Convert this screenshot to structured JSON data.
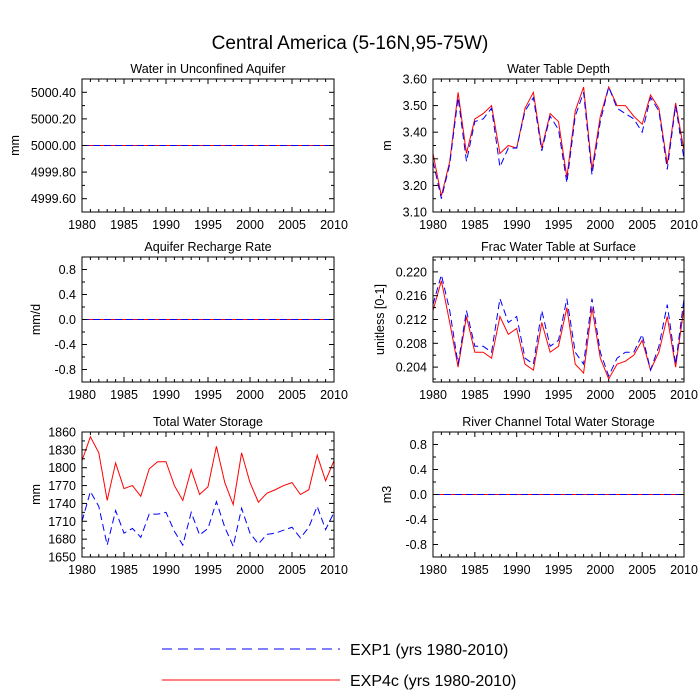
{
  "title": "Central America (5-16N,95-75W)",
  "legend": [
    {
      "label": "EXP1 (yrs 1980-2010)",
      "color": "#0000ff",
      "dash": true
    },
    {
      "label": "EXP4c (yrs 1980-2010)",
      "color": "#ff0000",
      "dash": false
    }
  ],
  "chart_data": [
    {
      "type": "line",
      "title": "Water in Unconfined Aquifer",
      "ylabel": "mm",
      "xlabel": "",
      "xlim": [
        1980,
        2010
      ],
      "ylim": [
        4999.5,
        5000.5
      ],
      "xticks": [
        1980,
        1985,
        1990,
        1995,
        2000,
        2005,
        2010
      ],
      "yticks": [
        4999.6,
        4999.8,
        5000.0,
        5000.2,
        5000.4
      ],
      "ytick_labels": [
        "4999.60",
        "4999.80",
        "5000.00",
        "5000.20",
        "5000.40"
      ],
      "years": [
        1980,
        2010
      ],
      "series": [
        {
          "name": "EXP1",
          "values": [
            5000.0,
            5000.0
          ]
        },
        {
          "name": "EXP4c",
          "values": [
            5000.0,
            5000.0
          ]
        }
      ]
    },
    {
      "type": "line",
      "title": "Water Table Depth",
      "ylabel": "m",
      "xlabel": "",
      "xlim": [
        1980,
        2010
      ],
      "ylim": [
        3.1,
        3.6
      ],
      "xticks": [
        1980,
        1985,
        1990,
        1995,
        2000,
        2005,
        2010
      ],
      "yticks": [
        3.1,
        3.2,
        3.3,
        3.4,
        3.5,
        3.6
      ],
      "ytick_labels": [
        "3.10",
        "3.20",
        "3.30",
        "3.40",
        "3.50",
        "3.60"
      ],
      "years": [
        1980,
        1981,
        1982,
        1983,
        1984,
        1985,
        1986,
        1987,
        1988,
        1989,
        1990,
        1991,
        1992,
        1993,
        1994,
        1995,
        1996,
        1997,
        1998,
        1999,
        2000,
        2001,
        2002,
        2003,
        2004,
        2005,
        2006,
        2007,
        2008,
        2009,
        2010
      ],
      "series": [
        {
          "name": "EXP1",
          "values": [
            3.29,
            3.15,
            3.28,
            3.53,
            3.29,
            3.44,
            3.45,
            3.49,
            3.27,
            3.34,
            3.34,
            3.48,
            3.53,
            3.33,
            3.46,
            3.41,
            3.21,
            3.46,
            3.55,
            3.24,
            3.44,
            3.57,
            3.49,
            3.47,
            3.45,
            3.4,
            3.53,
            3.48,
            3.26,
            3.5,
            3.3
          ]
        },
        {
          "name": "EXP4c",
          "values": [
            3.32,
            3.16,
            3.29,
            3.55,
            3.32,
            3.45,
            3.47,
            3.5,
            3.32,
            3.35,
            3.34,
            3.49,
            3.55,
            3.34,
            3.47,
            3.44,
            3.23,
            3.48,
            3.57,
            3.26,
            3.46,
            3.57,
            3.5,
            3.5,
            3.46,
            3.43,
            3.54,
            3.49,
            3.28,
            3.51,
            3.33
          ]
        }
      ]
    },
    {
      "type": "line",
      "title": "Aquifer Recharge Rate",
      "ylabel": "mm/d",
      "xlabel": "",
      "xlim": [
        1980,
        2010
      ],
      "ylim": [
        -1.0,
        1.0
      ],
      "xticks": [
        1980,
        1985,
        1990,
        1995,
        2000,
        2005,
        2010
      ],
      "yticks": [
        -0.8,
        -0.4,
        0.0,
        0.4,
        0.8
      ],
      "ytick_labels": [
        "-0.8",
        "-0.4",
        "0.0",
        "0.4",
        "0.8"
      ],
      "years": [
        1980,
        2010
      ],
      "series": [
        {
          "name": "EXP1",
          "values": [
            0.0,
            0.0
          ]
        },
        {
          "name": "EXP4c",
          "values": [
            0.0,
            0.0
          ]
        }
      ]
    },
    {
      "type": "line",
      "title": "Frac Water Table at Surface",
      "ylabel": "unitless [0-1]",
      "xlabel": "",
      "xlim": [
        1980,
        2010
      ],
      "ylim": [
        0.2015,
        0.2225
      ],
      "xticks": [
        1980,
        1985,
        1990,
        1995,
        2000,
        2005,
        2010
      ],
      "yticks": [
        0.204,
        0.208,
        0.212,
        0.216,
        0.22
      ],
      "ytick_labels": [
        "0.204",
        "0.208",
        "0.212",
        "0.216",
        "0.220"
      ],
      "years": [
        1980,
        1981,
        1982,
        1983,
        1984,
        1985,
        1986,
        1987,
        1988,
        1989,
        1990,
        1991,
        1992,
        1993,
        1994,
        1995,
        1996,
        1997,
        1998,
        1999,
        2000,
        2001,
        2002,
        2003,
        2004,
        2005,
        2006,
        2007,
        2008,
        2009,
        2010
      ],
      "series": [
        {
          "name": "EXP1",
          "values": [
            0.2145,
            0.2195,
            0.2135,
            0.2045,
            0.2135,
            0.2075,
            0.2075,
            0.2065,
            0.2155,
            0.2115,
            0.2125,
            0.2055,
            0.2045,
            0.2135,
            0.2075,
            0.2085,
            0.2155,
            0.2065,
            0.2045,
            0.2155,
            0.2065,
            0.2025,
            0.2055,
            0.2065,
            0.2065,
            0.2095,
            0.2035,
            0.2075,
            0.2145,
            0.2045,
            0.2155
          ]
        },
        {
          "name": "EXP4c",
          "values": [
            0.2135,
            0.2185,
            0.2115,
            0.204,
            0.2125,
            0.2065,
            0.2065,
            0.2055,
            0.2125,
            0.2095,
            0.2105,
            0.2045,
            0.2035,
            0.2115,
            0.2065,
            0.2075,
            0.214,
            0.2045,
            0.203,
            0.214,
            0.2055,
            0.202,
            0.2045,
            0.205,
            0.206,
            0.2085,
            0.2035,
            0.2065,
            0.2125,
            0.204,
            0.214
          ]
        }
      ]
    },
    {
      "type": "line",
      "title": "Total Water Storage",
      "ylabel": "mm",
      "xlabel": "",
      "xlim": [
        1980,
        2010
      ],
      "ylim": [
        1650,
        1860
      ],
      "xticks": [
        1980,
        1985,
        1990,
        1995,
        2000,
        2005,
        2010
      ],
      "yticks": [
        1650,
        1680,
        1710,
        1740,
        1770,
        1800,
        1830,
        1860
      ],
      "ytick_labels": [
        "1650",
        "1680",
        "1710",
        "1740",
        "1770",
        "1800",
        "1830",
        "1860"
      ],
      "years": [
        1980,
        1981,
        1982,
        1983,
        1984,
        1985,
        1986,
        1987,
        1988,
        1989,
        1990,
        1991,
        1992,
        1993,
        1994,
        1995,
        1996,
        1997,
        1998,
        1999,
        2000,
        2001,
        2002,
        2003,
        2004,
        2005,
        2006,
        2007,
        2008,
        2009,
        2010
      ],
      "series": [
        {
          "name": "EXP1",
          "values": [
            1710,
            1760,
            1735,
            1670,
            1728,
            1690,
            1698,
            1683,
            1722,
            1722,
            1725,
            1693,
            1670,
            1725,
            1687,
            1698,
            1743,
            1700,
            1668,
            1732,
            1690,
            1672,
            1688,
            1690,
            1695,
            1700,
            1682,
            1700,
            1735,
            1696,
            1725
          ]
        },
        {
          "name": "EXP4c",
          "values": [
            1812,
            1852,
            1825,
            1745,
            1808,
            1765,
            1770,
            1752,
            1798,
            1810,
            1810,
            1770,
            1745,
            1797,
            1755,
            1768,
            1836,
            1775,
            1738,
            1825,
            1775,
            1742,
            1757,
            1763,
            1770,
            1775,
            1755,
            1763,
            1821,
            1778,
            1812
          ]
        }
      ]
    },
    {
      "type": "line",
      "title": "River Channel Total Water Storage",
      "ylabel": "m3",
      "xlabel": "",
      "xlim": [
        1980,
        2010
      ],
      "ylim": [
        -1.0,
        1.0
      ],
      "xticks": [
        1980,
        1985,
        1990,
        1995,
        2000,
        2005,
        2010
      ],
      "yticks": [
        -0.8,
        -0.4,
        0.0,
        0.4,
        0.8
      ],
      "ytick_labels": [
        "-0.8",
        "-0.4",
        "0.0",
        "0.4",
        "0.8"
      ],
      "years": [
        1980,
        2010
      ],
      "series": [
        {
          "name": "EXP1",
          "values": [
            0.0,
            0.0
          ]
        },
        {
          "name": "EXP4c",
          "values": [
            0.0,
            0.0
          ]
        }
      ]
    }
  ]
}
